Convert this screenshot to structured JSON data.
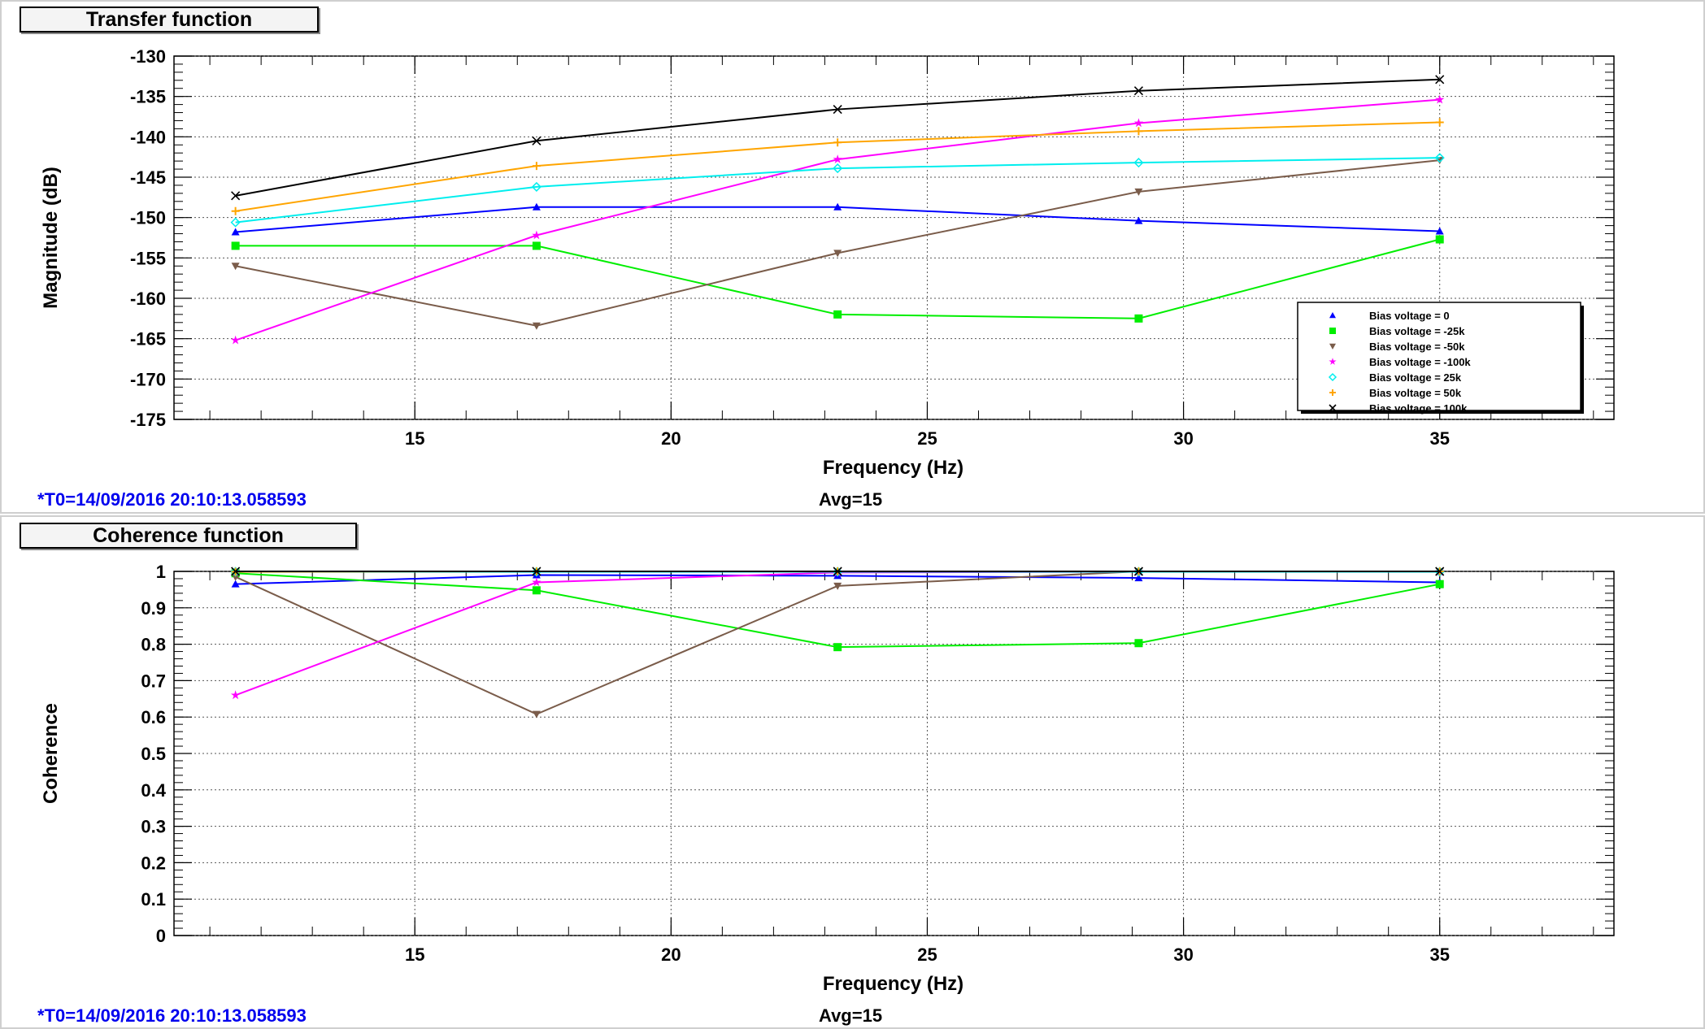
{
  "panels": [
    {
      "title": "Transfer function",
      "timestamp": "*T0=14/09/2016 20:10:13.058593",
      "avg": "Avg=15"
    },
    {
      "title": "Coherence function",
      "timestamp": "*T0=14/09/2016 20:10:13.058593",
      "avg": "Avg=15"
    }
  ],
  "chart_data": [
    {
      "type": "line",
      "title": "Transfer function",
      "xlabel": "Frequency (Hz)",
      "ylabel": "Magnitude (dB)",
      "xlim": [
        10.3,
        38.4
      ],
      "ylim": [
        -175,
        -130
      ],
      "xticks": [
        15,
        20,
        25,
        30,
        35
      ],
      "yticks": [
        -130,
        -135,
        -140,
        -145,
        -150,
        -155,
        -160,
        -165,
        -170,
        -175
      ],
      "grid": true,
      "legend_position": "bottom-right",
      "x": [
        11.5,
        17.375,
        23.25,
        29.125,
        35
      ],
      "series": [
        {
          "name": "Bias voltage = 0",
          "color": "#0000ff",
          "marker": "triangle-up",
          "values": [
            -151.8,
            -148.7,
            -148.7,
            -150.4,
            -151.7
          ]
        },
        {
          "name": "Bias voltage = -25k",
          "color": "#00ee00",
          "marker": "square",
          "values": [
            -153.5,
            -153.5,
            -162.0,
            -162.5,
            -152.7
          ]
        },
        {
          "name": "Bias voltage = -50k",
          "color": "#7a5c4a",
          "marker": "triangle-down",
          "values": [
            -156.0,
            -163.4,
            -154.4,
            -146.8,
            -142.9
          ]
        },
        {
          "name": "Bias voltage = -100k",
          "color": "#ff00ff",
          "marker": "star",
          "values": [
            -165.2,
            -152.2,
            -142.8,
            -138.3,
            -135.4
          ]
        },
        {
          "name": "Bias voltage = 25k",
          "color": "#00eeee",
          "marker": "diamond",
          "values": [
            -150.6,
            -146.2,
            -143.9,
            -143.2,
            -142.6
          ]
        },
        {
          "name": "Bias voltage = 50k",
          "color": "#ffa500",
          "marker": "plus",
          "values": [
            -149.2,
            -143.6,
            -140.7,
            -139.3,
            -138.2
          ]
        },
        {
          "name": "Bias voltage = 100k",
          "color": "#000000",
          "marker": "cross",
          "values": [
            -147.3,
            -140.5,
            -136.6,
            -134.3,
            -132.9
          ]
        }
      ]
    },
    {
      "type": "line",
      "title": "Coherence function",
      "xlabel": "Frequency (Hz)",
      "ylabel": "Coherence",
      "xlim": [
        10.3,
        38.4
      ],
      "ylim": [
        0,
        1
      ],
      "xticks": [
        15,
        20,
        25,
        30,
        35
      ],
      "yticks": [
        0,
        0.1,
        0.2,
        0.3,
        0.4,
        0.5,
        0.6,
        0.7,
        0.8,
        0.9,
        1
      ],
      "ytick_labels": [
        "0",
        "0.1",
        "0.2",
        "0.3",
        "0.4",
        "0.5",
        "0.6",
        "0.7",
        "0.8",
        "0.9",
        "1"
      ],
      "grid": true,
      "x": [
        11.5,
        17.375,
        23.25,
        29.125,
        35
      ],
      "series": [
        {
          "name": "Bias voltage = 0",
          "color": "#0000ff",
          "marker": "triangle-up",
          "values": [
            0.965,
            0.99,
            0.988,
            0.982,
            0.97
          ]
        },
        {
          "name": "Bias voltage = -25k",
          "color": "#00ee00",
          "marker": "square",
          "values": [
            0.995,
            0.948,
            0.792,
            0.803,
            0.965
          ]
        },
        {
          "name": "Bias voltage = -50k",
          "color": "#7a5c4a",
          "marker": "triangle-down",
          "values": [
            0.985,
            0.608,
            0.96,
            1.0,
            1.0
          ]
        },
        {
          "name": "Bias voltage = -100k",
          "color": "#ff00ff",
          "marker": "star",
          "values": [
            0.66,
            0.97,
            0.997,
            0.999,
            0.999
          ]
        },
        {
          "name": "Bias voltage = 25k",
          "color": "#00eeee",
          "marker": "diamond",
          "values": [
            0.999,
            0.999,
            0.999,
            0.999,
            0.999
          ]
        },
        {
          "name": "Bias voltage = 50k",
          "color": "#ffa500",
          "marker": "plus",
          "values": [
            0.999,
            1.0,
            1.0,
            1.0,
            1.0
          ]
        },
        {
          "name": "Bias voltage = 100k",
          "color": "#000000",
          "marker": "cross",
          "values": [
            1.0,
            1.0,
            1.0,
            1.0,
            1.0
          ]
        }
      ]
    }
  ]
}
